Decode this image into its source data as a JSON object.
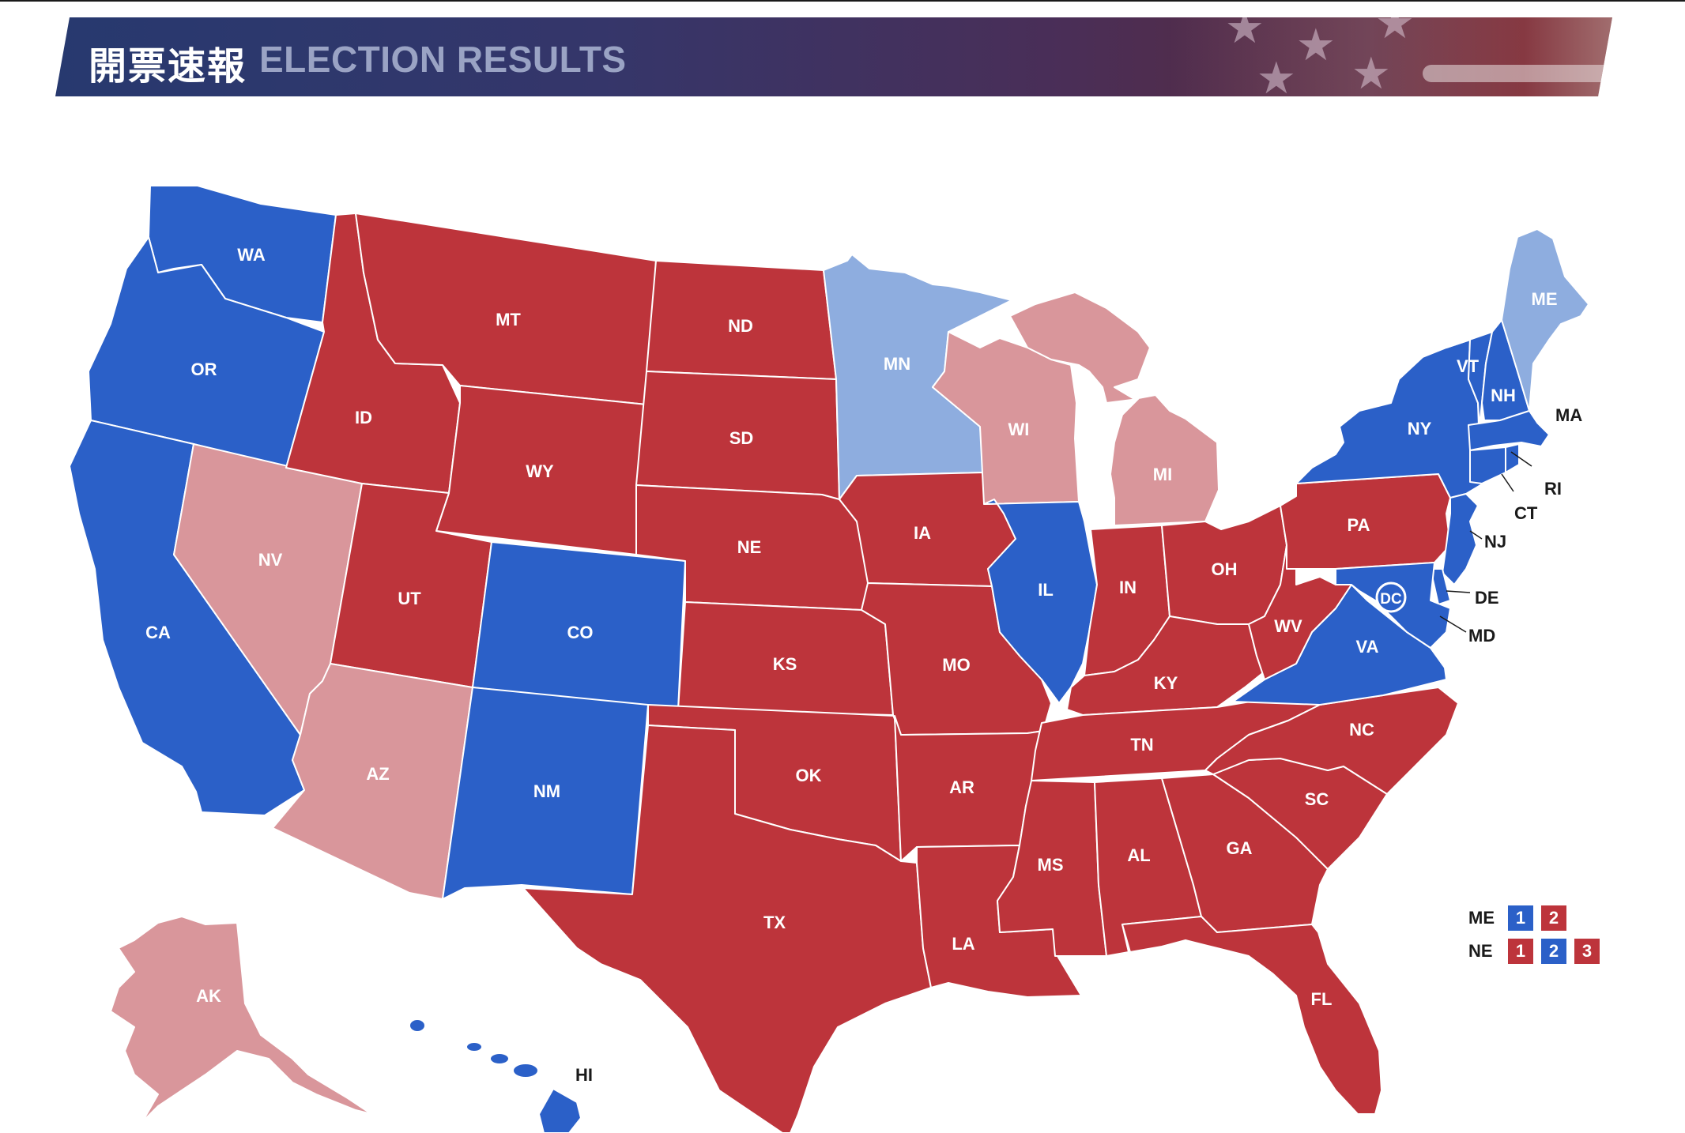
{
  "header": {
    "title_jp": "開票速報",
    "title_en": "ELECTION RESULTS"
  },
  "colors": {
    "dem_strong": "#2b60c8",
    "dem_lean": "#8eaddf",
    "rep_strong": "#bd343b",
    "rep_lean": "#d9969b"
  },
  "states": {
    "WA": {
      "label": "WA",
      "result": "dem_strong"
    },
    "OR": {
      "label": "OR",
      "result": "dem_strong"
    },
    "CA": {
      "label": "CA",
      "result": "dem_strong"
    },
    "NV": {
      "label": "NV",
      "result": "rep_lean"
    },
    "ID": {
      "label": "ID",
      "result": "rep_strong"
    },
    "MT": {
      "label": "MT",
      "result": "rep_strong"
    },
    "WY": {
      "label": "WY",
      "result": "rep_strong"
    },
    "UT": {
      "label": "UT",
      "result": "rep_strong"
    },
    "AZ": {
      "label": "AZ",
      "result": "rep_lean"
    },
    "CO": {
      "label": "CO",
      "result": "dem_strong"
    },
    "NM": {
      "label": "NM",
      "result": "dem_strong"
    },
    "ND": {
      "label": "ND",
      "result": "rep_strong"
    },
    "SD": {
      "label": "SD",
      "result": "rep_strong"
    },
    "NE": {
      "label": "NE",
      "result": "rep_strong"
    },
    "KS": {
      "label": "KS",
      "result": "rep_strong"
    },
    "OK": {
      "label": "OK",
      "result": "rep_strong"
    },
    "TX": {
      "label": "TX",
      "result": "rep_strong"
    },
    "MN": {
      "label": "MN",
      "result": "dem_lean"
    },
    "IA": {
      "label": "IA",
      "result": "rep_strong"
    },
    "MO": {
      "label": "MO",
      "result": "rep_strong"
    },
    "AR": {
      "label": "AR",
      "result": "rep_strong"
    },
    "LA": {
      "label": "LA",
      "result": "rep_strong"
    },
    "WI": {
      "label": "WI",
      "result": "rep_lean"
    },
    "IL": {
      "label": "IL",
      "result": "dem_strong"
    },
    "MI": {
      "label": "MI",
      "result": "rep_lean"
    },
    "IN": {
      "label": "IN",
      "result": "rep_strong"
    },
    "OH": {
      "label": "OH",
      "result": "rep_strong"
    },
    "KY": {
      "label": "KY",
      "result": "rep_strong"
    },
    "TN": {
      "label": "TN",
      "result": "rep_strong"
    },
    "MS": {
      "label": "MS",
      "result": "rep_strong"
    },
    "AL": {
      "label": "AL",
      "result": "rep_strong"
    },
    "GA": {
      "label": "GA",
      "result": "rep_strong"
    },
    "FL": {
      "label": "FL",
      "result": "rep_strong"
    },
    "SC": {
      "label": "SC",
      "result": "rep_strong"
    },
    "NC": {
      "label": "NC",
      "result": "rep_strong"
    },
    "VA": {
      "label": "VA",
      "result": "dem_strong"
    },
    "WV": {
      "label": "WV",
      "result": "rep_strong"
    },
    "PA": {
      "label": "PA",
      "result": "rep_strong"
    },
    "NY": {
      "label": "NY",
      "result": "dem_strong"
    },
    "VT": {
      "label": "VT",
      "result": "dem_strong"
    },
    "NH": {
      "label": "NH",
      "result": "dem_strong"
    },
    "ME": {
      "label": "ME",
      "result": "dem_lean"
    },
    "MA": {
      "label": "MA",
      "result": "dem_strong"
    },
    "RI": {
      "label": "RI",
      "result": "dem_strong"
    },
    "CT": {
      "label": "CT",
      "result": "dem_strong"
    },
    "NJ": {
      "label": "NJ",
      "result": "dem_strong"
    },
    "DE": {
      "label": "DE",
      "result": "dem_strong"
    },
    "MD": {
      "label": "MD",
      "result": "dem_strong"
    },
    "DC": {
      "label": "DC",
      "result": "dem_strong"
    },
    "AK": {
      "label": "AK",
      "result": "rep_lean"
    },
    "HI": {
      "label": "HI",
      "result": "dem_strong"
    }
  },
  "legend": {
    "rows": [
      {
        "name": "ME",
        "districts": [
          {
            "label": "1",
            "result": "dem_strong"
          },
          {
            "label": "2",
            "result": "rep_strong"
          }
        ]
      },
      {
        "name": "NE",
        "districts": [
          {
            "label": "1",
            "result": "rep_strong"
          },
          {
            "label": "2",
            "result": "dem_strong"
          },
          {
            "label": "3",
            "result": "rep_strong"
          }
        ]
      }
    ]
  }
}
